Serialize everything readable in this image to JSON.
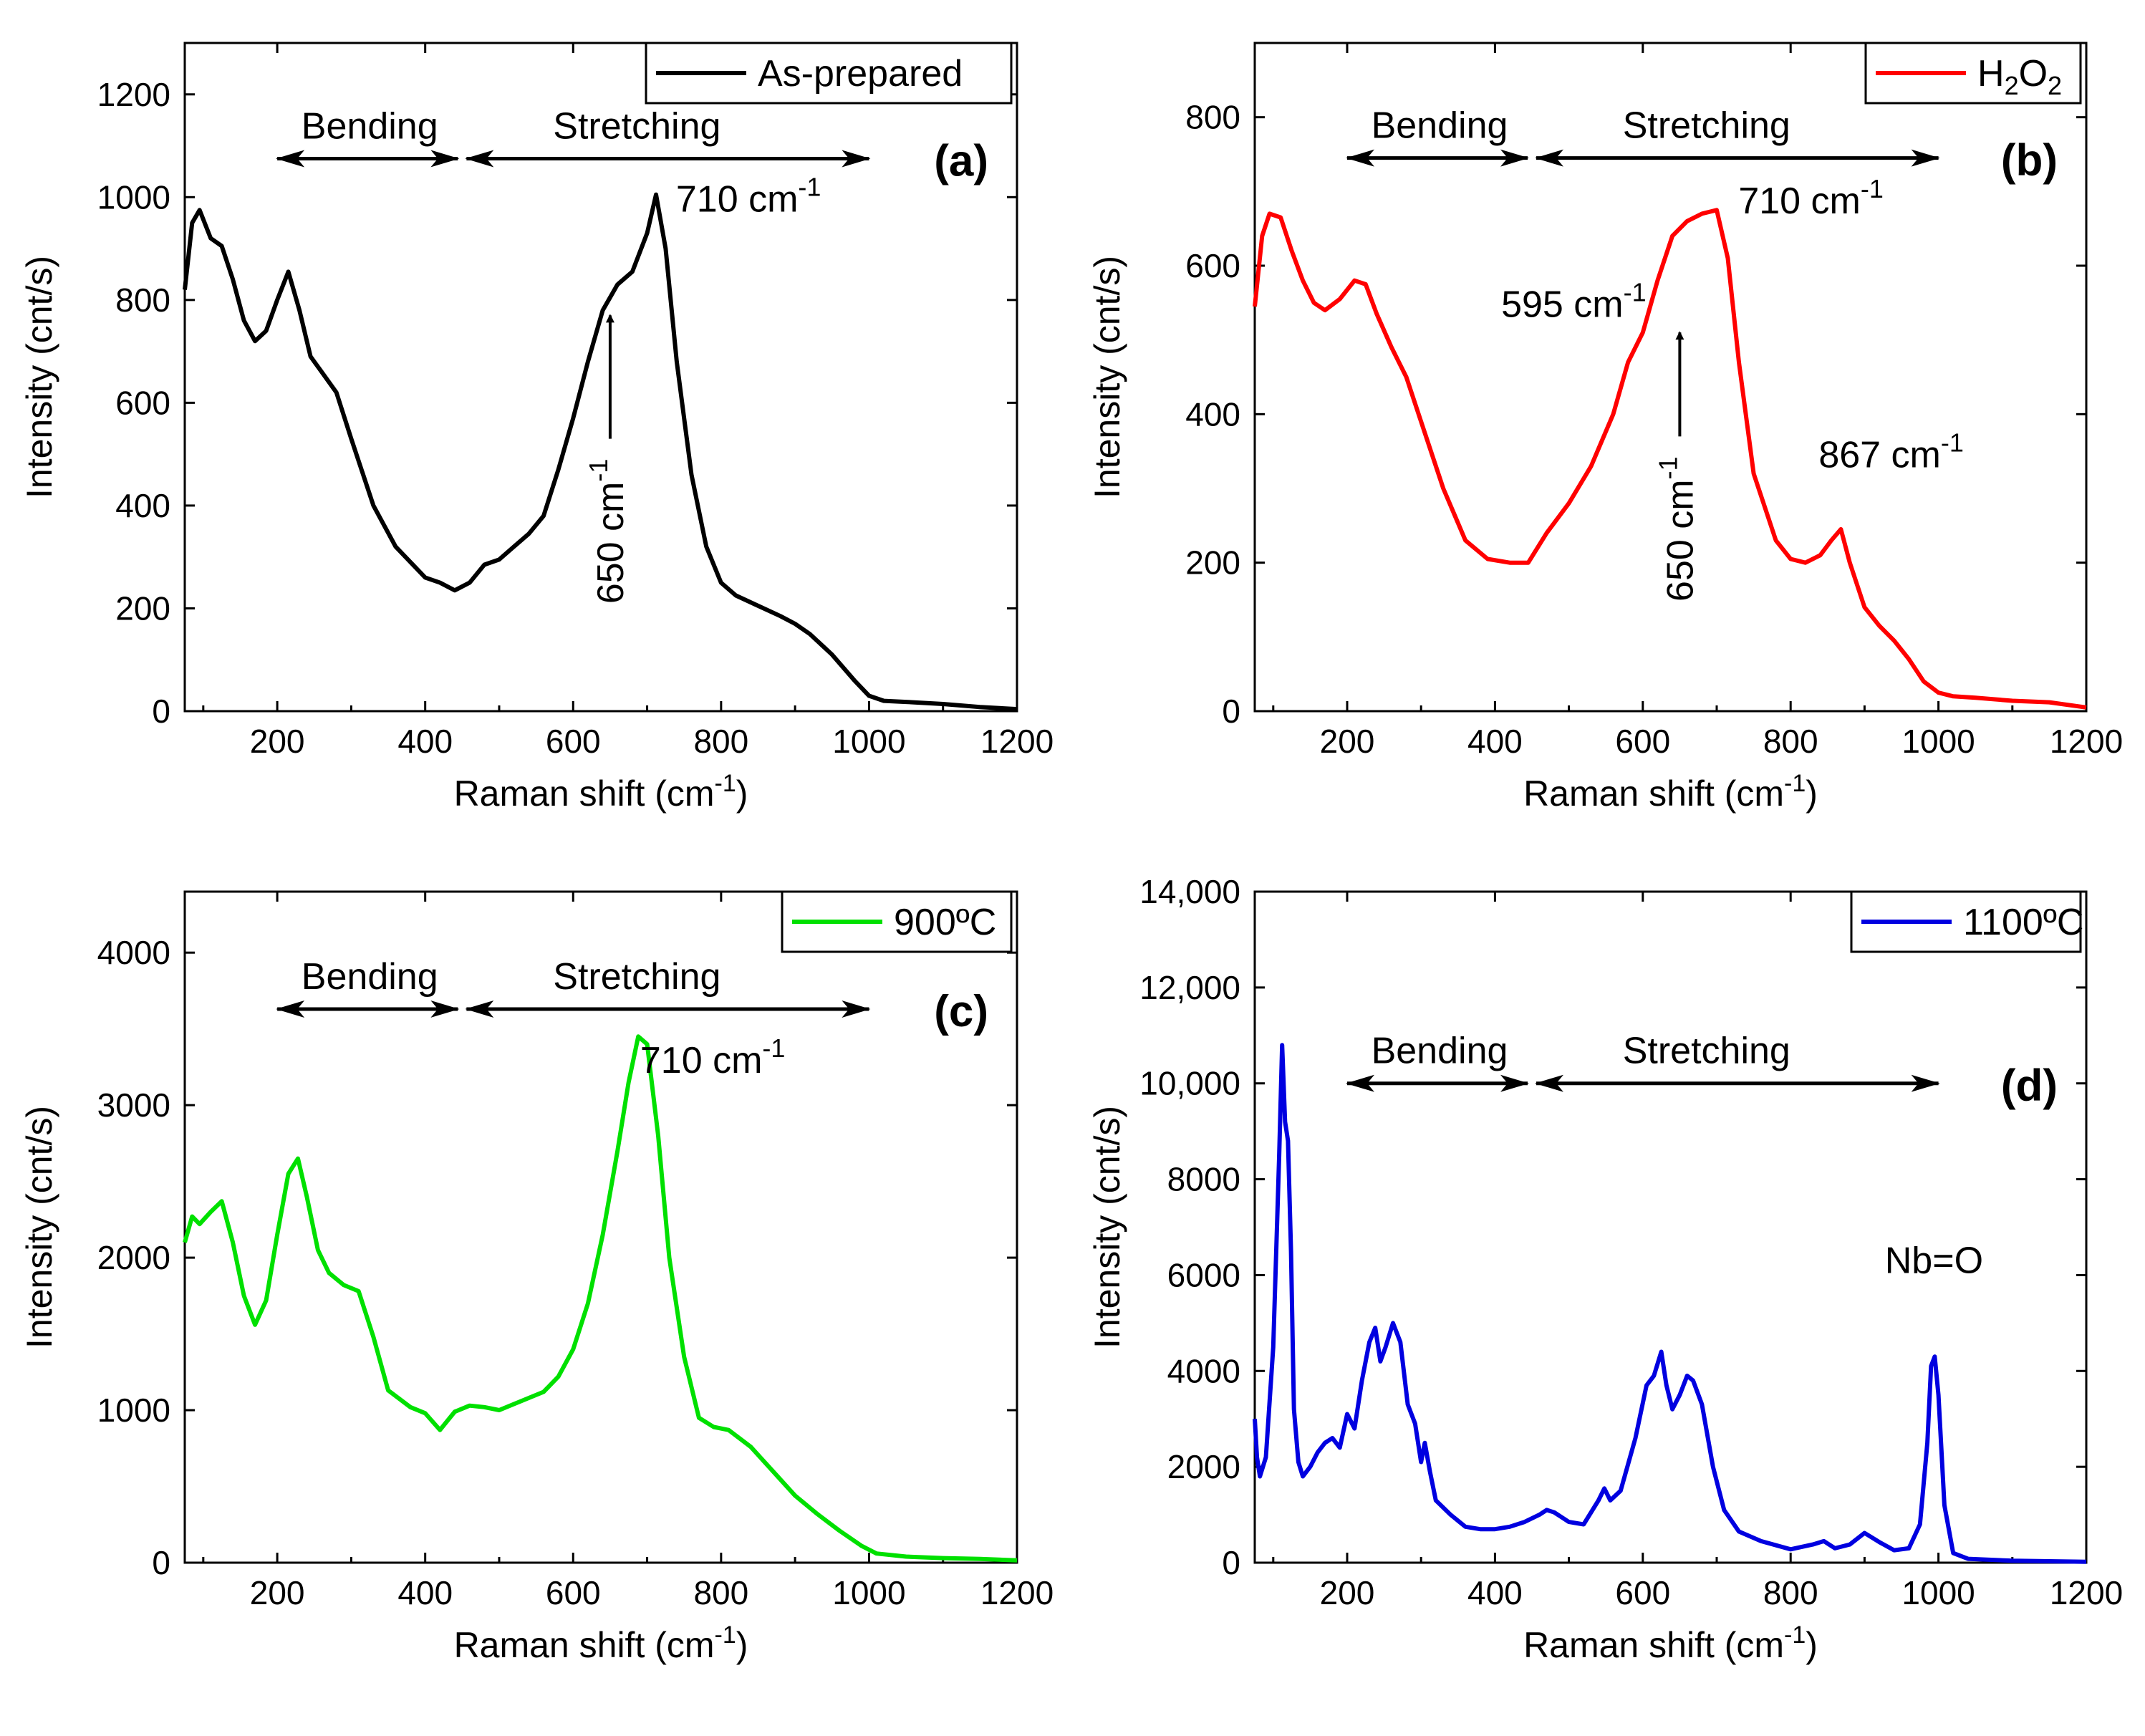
{
  "chart_data": [
    {
      "type": "line",
      "panel_label": "(a)",
      "color": "#000000",
      "xlabel": "Raman shift (cm",
      "xlabel_sup": "-1",
      "xlabel_tail": ")",
      "ylabel": "Intensity (cnt/s)",
      "xlim": [
        75,
        1200
      ],
      "ylim": [
        0,
        1300
      ],
      "xticks": [
        "200",
        "400",
        "600",
        "800",
        "1000",
        "1200"
      ],
      "yticks": [
        "0",
        "200",
        "400",
        "600",
        "800",
        "1000",
        "1200"
      ],
      "legend": {
        "label": "As-prepared",
        "position": "top-right"
      },
      "region_labels": {
        "bending": "Bending",
        "stretching": "Stretching",
        "bending_range": [
          200,
          450
        ],
        "stretching_range": [
          450,
          1000
        ],
        "y": 1075
      },
      "peak_labels": [
        {
          "text": "710 cm",
          "sup": "-1",
          "x": 710,
          "y": 1000
        }
      ],
      "vertical_annotation": {
        "text": "650 cm",
        "sup": "-1",
        "x": 650,
        "y_from": 530,
        "y_to": 770
      },
      "series": [
        {
          "name": "As-prepared",
          "x": [
            75,
            85,
            95,
            110,
            125,
            140,
            155,
            170,
            185,
            200,
            215,
            230,
            245,
            260,
            280,
            300,
            330,
            360,
            400,
            420,
            440,
            460,
            480,
            500,
            520,
            540,
            560,
            580,
            600,
            620,
            640,
            660,
            680,
            700,
            712,
            725,
            740,
            760,
            780,
            800,
            820,
            850,
            880,
            900,
            920,
            950,
            980,
            1000,
            1020,
            1050,
            1100,
            1150,
            1200
          ],
          "values": [
            820,
            950,
            975,
            920,
            905,
            840,
            760,
            720,
            740,
            800,
            855,
            780,
            690,
            660,
            620,
            530,
            400,
            320,
            260,
            250,
            235,
            250,
            285,
            295,
            320,
            345,
            380,
            470,
            570,
            680,
            780,
            830,
            855,
            930,
            1005,
            900,
            680,
            460,
            320,
            250,
            225,
            205,
            185,
            170,
            150,
            110,
            60,
            30,
            20,
            18,
            14,
            8,
            4
          ]
        }
      ]
    },
    {
      "type": "line",
      "panel_label": "(b)",
      "color": "#ff0000",
      "xlabel": "Raman shift (cm",
      "xlabel_sup": "-1",
      "xlabel_tail": ")",
      "ylabel": "Intensity (cnt/s)",
      "xlim": [
        75,
        1200
      ],
      "ylim": [
        0,
        900
      ],
      "xticks": [
        "200",
        "400",
        "600",
        "800",
        "1000",
        "1200"
      ],
      "yticks": [
        "0",
        "200",
        "400",
        "600",
        "800"
      ],
      "legend": {
        "label": "H",
        "sub1": "2",
        "mid": "O",
        "sub2": "2",
        "position": "top-right"
      },
      "region_labels": {
        "bending": "Bending",
        "stretching": "Stretching",
        "bending_range": [
          200,
          450
        ],
        "stretching_range": [
          450,
          1000
        ],
        "y": 745
      },
      "peak_labels": [
        {
          "text": "710 cm",
          "sup": "-1",
          "x": 710,
          "y": 680
        },
        {
          "text": "595 cm",
          "sup": "-1",
          "x": 595,
          "y": 560
        },
        {
          "text": "867 cm",
          "sup": "-1",
          "x": 867,
          "y": 290
        }
      ],
      "vertical_annotation": {
        "text": "650 cm",
        "sup": "-1",
        "x": 650,
        "y_from": 370,
        "y_to": 510
      },
      "series": [
        {
          "name": "H2O2",
          "x": [
            75,
            85,
            95,
            110,
            125,
            140,
            155,
            170,
            190,
            210,
            225,
            240,
            260,
            280,
            300,
            330,
            360,
            390,
            420,
            445,
            470,
            500,
            530,
            560,
            580,
            600,
            620,
            640,
            660,
            680,
            700,
            715,
            730,
            750,
            780,
            800,
            820,
            840,
            855,
            868,
            880,
            900,
            920,
            940,
            960,
            980,
            1000,
            1020,
            1050,
            1100,
            1150,
            1200
          ],
          "values": [
            545,
            640,
            670,
            665,
            620,
            580,
            550,
            540,
            555,
            580,
            575,
            535,
            490,
            450,
            390,
            300,
            230,
            205,
            200,
            200,
            240,
            280,
            330,
            400,
            470,
            510,
            580,
            640,
            660,
            670,
            675,
            610,
            470,
            320,
            230,
            205,
            200,
            210,
            230,
            245,
            200,
            140,
            115,
            95,
            70,
            40,
            25,
            20,
            18,
            14,
            12,
            5
          ]
        }
      ]
    },
    {
      "type": "line",
      "panel_label": "(c)",
      "color": "#00e000",
      "xlabel": "Raman shift (cm",
      "xlabel_sup": "-1",
      "xlabel_tail": ")",
      "ylabel": "Intensity (cnt/s)",
      "xlim": [
        75,
        1200
      ],
      "ylim": [
        0,
        4400
      ],
      "xticks": [
        "200",
        "400",
        "600",
        "800",
        "1000",
        "1200"
      ],
      "yticks": [
        "0",
        "1000",
        "2000",
        "3000",
        "4000"
      ],
      "legend": {
        "label": "900ºC",
        "position": "top-right"
      },
      "region_labels": {
        "bending": "Bending",
        "stretching": "Stretching",
        "bending_range": [
          200,
          450
        ],
        "stretching_range": [
          450,
          1000
        ],
        "y": 3630
      },
      "peak_labels": [
        {
          "text": "710 cm",
          "sup": "-1",
          "x": 710,
          "y": 3400
        }
      ],
      "series": [
        {
          "name": "900ºC",
          "x": [
            75,
            85,
            95,
            110,
            125,
            140,
            155,
            170,
            185,
            200,
            215,
            228,
            240,
            255,
            270,
            290,
            310,
            330,
            350,
            380,
            400,
            420,
            440,
            460,
            480,
            500,
            520,
            540,
            560,
            580,
            600,
            620,
            640,
            660,
            675,
            688,
            700,
            715,
            730,
            750,
            770,
            790,
            810,
            840,
            870,
            900,
            930,
            960,
            990,
            1010,
            1050,
            1100,
            1150,
            1200
          ],
          "values": [
            2100,
            2270,
            2220,
            2300,
            2370,
            2100,
            1750,
            1560,
            1720,
            2150,
            2550,
            2650,
            2400,
            2050,
            1900,
            1820,
            1780,
            1480,
            1130,
            1020,
            980,
            870,
            990,
            1030,
            1020,
            1000,
            1040,
            1080,
            1120,
            1220,
            1400,
            1700,
            2150,
            2700,
            3150,
            3450,
            3400,
            2800,
            2000,
            1350,
            950,
            890,
            870,
            760,
            600,
            440,
            320,
            210,
            110,
            60,
            40,
            30,
            25,
            15
          ]
        }
      ]
    },
    {
      "type": "line",
      "panel_label": "(d)",
      "color": "#0000e0",
      "xlabel": "Raman shift (cm",
      "xlabel_sup": "-1",
      "xlabel_tail": ")",
      "ylabel": "Intensity (cnt/s)",
      "xlim": [
        75,
        1200
      ],
      "ylim": [
        0,
        14000
      ],
      "xticks": [
        "200",
        "400",
        "600",
        "800",
        "1000",
        "1200"
      ],
      "yticks": [
        "0",
        "2000",
        "4000",
        "6000",
        "8000",
        "10,000",
        "12,000",
        "14,000"
      ],
      "legend": {
        "label": "1100ºC",
        "position": "top-right"
      },
      "region_labels": {
        "bending": "Bending",
        "stretching": "Stretching",
        "bending_range": [
          200,
          450
        ],
        "stretching_range": [
          450,
          1000
        ],
        "y": 10000
      },
      "peak_labels": [
        {
          "text": "Nb=O",
          "sup": "",
          "x": 994,
          "y": 4400
        }
      ],
      "series": [
        {
          "name": "1100ºC",
          "x": [
            75,
            78,
            82,
            90,
            100,
            108,
            112,
            116,
            120,
            124,
            128,
            134,
            140,
            150,
            160,
            170,
            180,
            190,
            200,
            210,
            220,
            230,
            238,
            245,
            252,
            262,
            272,
            282,
            292,
            300,
            305,
            312,
            320,
            340,
            360,
            380,
            400,
            420,
            440,
            460,
            470,
            480,
            490,
            500,
            520,
            540,
            548,
            556,
            570,
            590,
            605,
            615,
            625,
            632,
            640,
            650,
            660,
            668,
            680,
            695,
            710,
            730,
            760,
            800,
            830,
            845,
            860,
            880,
            900,
            920,
            940,
            960,
            975,
            985,
            990,
            995,
            1000,
            1008,
            1020,
            1040,
            1100,
            1150,
            1200
          ],
          "values": [
            3000,
            2200,
            1800,
            2200,
            4500,
            8500,
            10800,
            9200,
            8800,
            6500,
            3200,
            2100,
            1800,
            2000,
            2300,
            2500,
            2600,
            2400,
            3100,
            2800,
            3800,
            4600,
            4900,
            4200,
            4500,
            5000,
            4600,
            3300,
            2900,
            2100,
            2500,
            1900,
            1300,
            1000,
            750,
            700,
            700,
            750,
            850,
            1000,
            1100,
            1050,
            950,
            850,
            800,
            1300,
            1550,
            1300,
            1500,
            2600,
            3700,
            3900,
            4400,
            3700,
            3200,
            3500,
            3900,
            3800,
            3300,
            2000,
            1100,
            650,
            450,
            280,
            380,
            450,
            300,
            380,
            620,
            430,
            260,
            300,
            800,
            2500,
            4100,
            4300,
            3500,
            1200,
            200,
            80,
            40,
            30,
            20
          ]
        }
      ]
    }
  ]
}
